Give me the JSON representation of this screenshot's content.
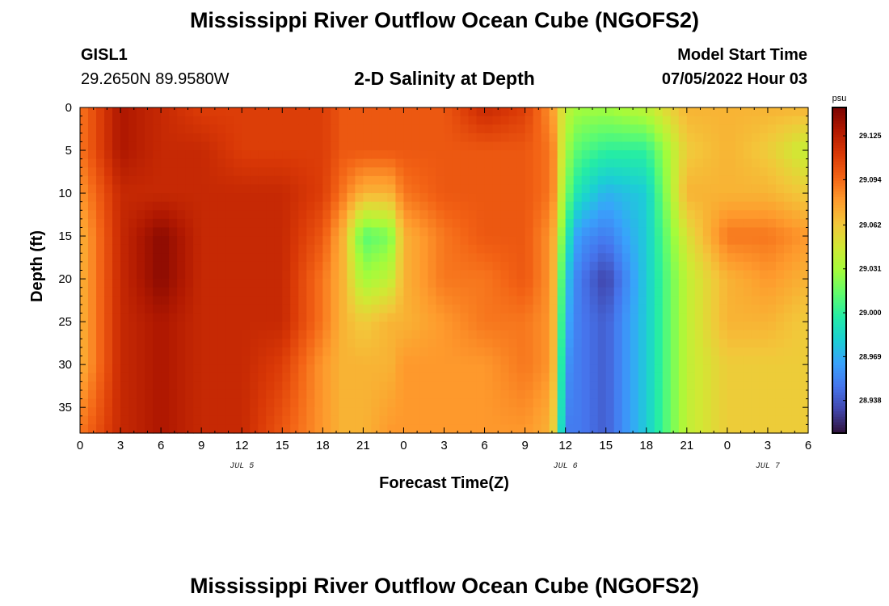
{
  "header": {
    "title": "Mississippi River Outflow Ocean Cube (NGOFS2)",
    "station_id": "GISL1",
    "coordinates": "29.2650N  89.9580W",
    "chart_title": "2-D Salinity at Depth",
    "model_start_label": "Model Start Time",
    "model_start_value": "07/05/2022 Hour 03"
  },
  "footer": {
    "title": "Mississippi River Outflow Ocean Cube (NGOFS2)"
  },
  "chart_data": {
    "type": "heatmap",
    "title": "2-D Salinity at Depth",
    "xlabel": "Forecast Time(Z)",
    "ylabel": "Depth (ft)",
    "x_range": [
      0,
      54
    ],
    "y_range": [
      0,
      38
    ],
    "y_inverted": true,
    "x_tick_values": [
      0,
      3,
      6,
      9,
      12,
      15,
      18,
      21,
      24,
      27,
      30,
      33,
      36,
      39,
      42,
      45,
      48,
      51,
      54
    ],
    "x_tick_labels": [
      "0",
      "3",
      "6",
      "9",
      "12",
      "15",
      "18",
      "21",
      "0",
      "3",
      "6",
      "9",
      "12",
      "15",
      "18",
      "21",
      "0",
      "3",
      "6"
    ],
    "y_tick_values": [
      0,
      5,
      10,
      15,
      20,
      25,
      30,
      35
    ],
    "y_tick_labels": [
      "0",
      "5",
      "10",
      "15",
      "20",
      "25",
      "30",
      "35"
    ],
    "date_labels": [
      {
        "x": 12,
        "label": "JUL 5"
      },
      {
        "x": 36,
        "label": "JUL 6"
      },
      {
        "x": 51,
        "label": "JUL 7"
      }
    ],
    "colorbar": {
      "unit": "psu",
      "range": [
        28.915,
        29.145
      ],
      "tick_values": [
        28.938,
        28.969,
        29.0,
        29.031,
        29.062,
        29.094,
        29.125
      ],
      "tick_labels": [
        "28.938",
        "28.969",
        "29.000",
        "29.031",
        "29.062",
        "29.094",
        "29.125"
      ],
      "colormap": [
        "#30123b",
        "#4145ab",
        "#4675ed",
        "#39a2fc",
        "#1bcfd4",
        "#24eca6",
        "#61fc6c",
        "#a4fc3b",
        "#d1e834",
        "#f3c63a",
        "#fe9b2d",
        "#f36315",
        "#d93806",
        "#b11901",
        "#7a0402"
      ]
    },
    "times": [
      0,
      3,
      6,
      9,
      12,
      15,
      18,
      19.5,
      21,
      23,
      24,
      27,
      30,
      33,
      35,
      36,
      37,
      39,
      42,
      45,
      48,
      51,
      54
    ],
    "depths": [
      0,
      5,
      10,
      15,
      20,
      25,
      30,
      38
    ],
    "salinity": [
      [
        29.09,
        29.09,
        29.08,
        29.07,
        29.07,
        29.07,
        29.07,
        29.09
      ],
      [
        29.13,
        29.13,
        29.12,
        29.12,
        29.12,
        29.12,
        29.12,
        29.12
      ],
      [
        29.12,
        29.12,
        29.12,
        29.14,
        29.14,
        29.13,
        29.13,
        29.13
      ],
      [
        29.11,
        29.12,
        29.12,
        29.12,
        29.12,
        29.12,
        29.12,
        29.12
      ],
      [
        29.11,
        29.11,
        29.12,
        29.12,
        29.12,
        29.12,
        29.12,
        29.12
      ],
      [
        29.11,
        29.11,
        29.12,
        29.12,
        29.12,
        29.12,
        29.11,
        29.1
      ],
      [
        29.11,
        29.11,
        29.11,
        29.1,
        29.09,
        29.09,
        29.08,
        29.08
      ],
      [
        29.1,
        29.1,
        29.09,
        29.07,
        29.07,
        29.07,
        29.07,
        29.07
      ],
      [
        29.1,
        29.1,
        29.07,
        29.01,
        29.03,
        29.06,
        29.07,
        29.07
      ],
      [
        29.1,
        29.1,
        29.07,
        29.02,
        29.04,
        29.07,
        29.07,
        29.08
      ],
      [
        29.1,
        29.1,
        29.09,
        29.07,
        29.07,
        29.07,
        29.08,
        29.08
      ],
      [
        29.1,
        29.1,
        29.1,
        29.09,
        29.09,
        29.08,
        29.08,
        29.08
      ],
      [
        29.12,
        29.1,
        29.1,
        29.1,
        29.09,
        29.09,
        29.08,
        29.08
      ],
      [
        29.11,
        29.1,
        29.1,
        29.1,
        29.1,
        29.09,
        29.09,
        29.08
      ],
      [
        29.08,
        29.09,
        29.09,
        29.08,
        29.08,
        29.08,
        29.08,
        29.07
      ],
      [
        29.04,
        29.03,
        29.02,
        29.0,
        28.98,
        28.97,
        28.96,
        28.95
      ],
      [
        29.03,
        29.01,
        28.99,
        28.96,
        28.95,
        28.95,
        28.95,
        28.95
      ],
      [
        29.03,
        29.0,
        28.97,
        28.95,
        28.93,
        28.94,
        28.94,
        28.94
      ],
      [
        29.04,
        29.0,
        28.98,
        28.98,
        28.98,
        28.98,
        28.98,
        28.98
      ],
      [
        29.07,
        29.06,
        29.07,
        29.05,
        29.04,
        29.04,
        29.04,
        29.04
      ],
      [
        29.07,
        29.07,
        29.07,
        29.09,
        29.07,
        29.07,
        29.06,
        29.06
      ],
      [
        29.07,
        29.06,
        29.07,
        29.09,
        29.08,
        29.07,
        29.06,
        29.06
      ],
      [
        29.07,
        29.04,
        29.06,
        29.08,
        29.07,
        29.06,
        29.06,
        29.06
      ]
    ]
  }
}
